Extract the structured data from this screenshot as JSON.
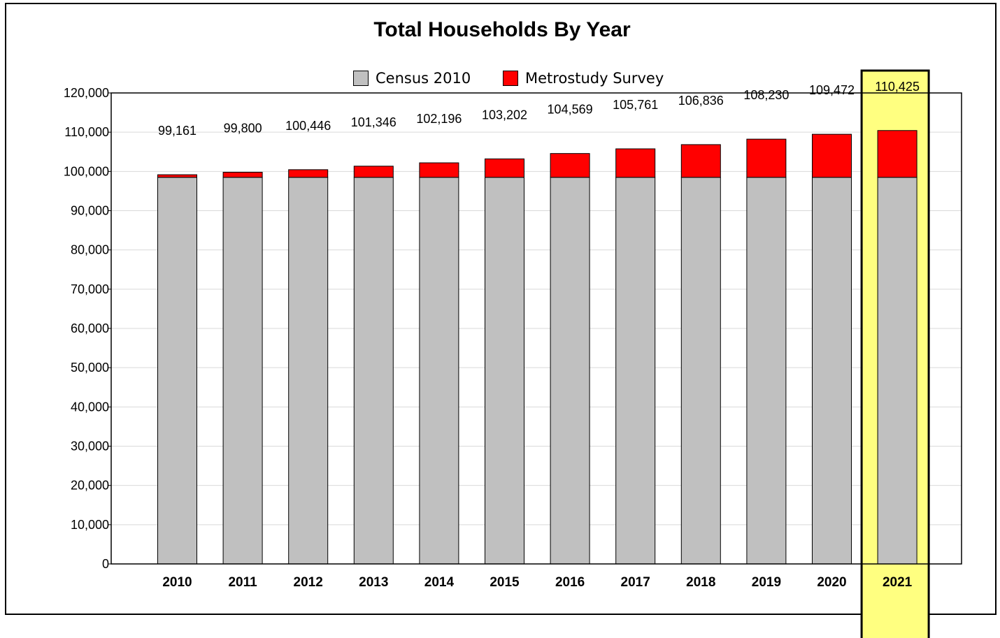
{
  "chart_data": {
    "type": "bar",
    "stacked": true,
    "title": "Total Households By Year",
    "xlabel": "",
    "ylabel": "",
    "ylim": [
      0,
      120000
    ],
    "ytick_step": 10000,
    "grid": true,
    "legend_position": "top-center",
    "categories": [
      "2010",
      "2011",
      "2012",
      "2013",
      "2014",
      "2015",
      "2016",
      "2017",
      "2018",
      "2019",
      "2020",
      "2021"
    ],
    "series": [
      {
        "name": "Census 2010",
        "color": "#c0c0c0",
        "values": [
          98500,
          98500,
          98500,
          98500,
          98500,
          98500,
          98500,
          98500,
          98500,
          98500,
          98500,
          98500
        ]
      },
      {
        "name": "Metrostudy Survey",
        "color": "#ff0000",
        "values": [
          661,
          1300,
          1946,
          2846,
          3696,
          4702,
          6069,
          7261,
          8336,
          9730,
          10972,
          11925
        ]
      }
    ],
    "totals": [
      "99,161",
      "99,800",
      "100,446",
      "101,346",
      "102,196",
      "103,202",
      "104,569",
      "105,761",
      "106,836",
      "108,230",
      "109,472",
      "110,425"
    ],
    "highlight": {
      "category": "2021",
      "color": "#ffff80"
    }
  }
}
